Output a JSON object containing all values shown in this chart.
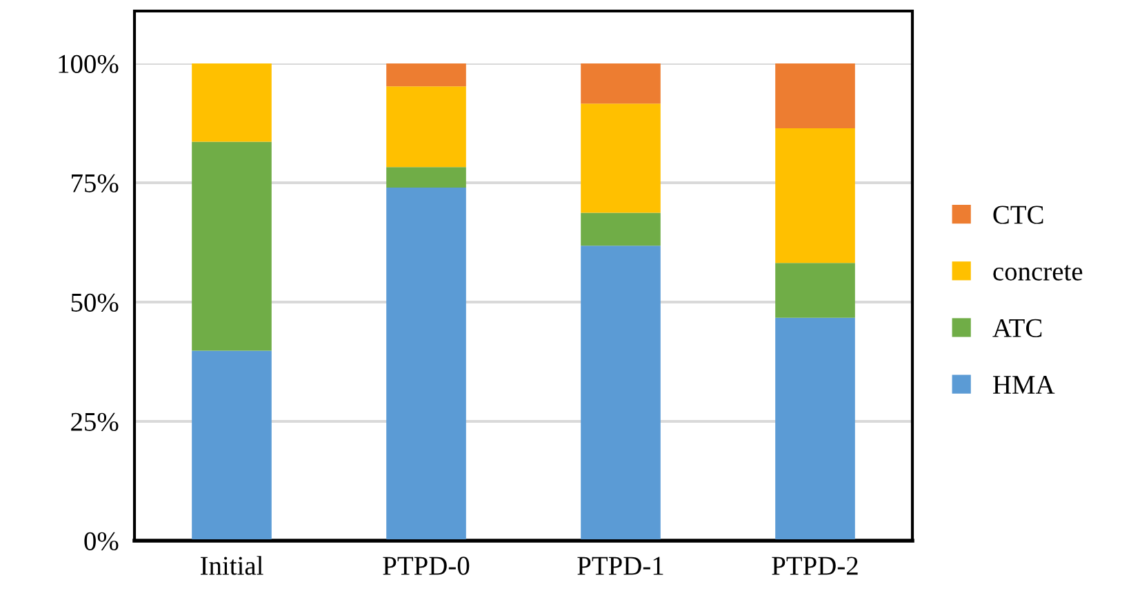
{
  "chart_data": {
    "type": "bar",
    "stacked": true,
    "categories": [
      "Initial",
      "PTPD-0",
      "PTPD-1",
      "PTPD-2"
    ],
    "series": [
      {
        "name": "HMA",
        "color": "#5b9bd5",
        "values": [
          39.8,
          74.0,
          61.8,
          46.7
        ]
      },
      {
        "name": "ATC",
        "color": "#70ad47",
        "values": [
          43.8,
          4.3,
          6.9,
          11.5
        ]
      },
      {
        "name": "concrete",
        "color": "#ffc000",
        "values": [
          16.4,
          16.9,
          22.9,
          28.2
        ]
      },
      {
        "name": "CTC",
        "color": "#ed7d31",
        "values": [
          0,
          4.8,
          8.4,
          13.6
        ]
      }
    ],
    "ylim": [
      0,
      100
    ],
    "yticks": [
      {
        "value": 0,
        "label": "0%"
      },
      {
        "value": 25,
        "label": "25%"
      },
      {
        "value": 50,
        "label": "50%"
      },
      {
        "value": 75,
        "label": "75%"
      },
      {
        "value": 100,
        "label": "100%"
      }
    ],
    "grid": "y",
    "legend": "right"
  }
}
